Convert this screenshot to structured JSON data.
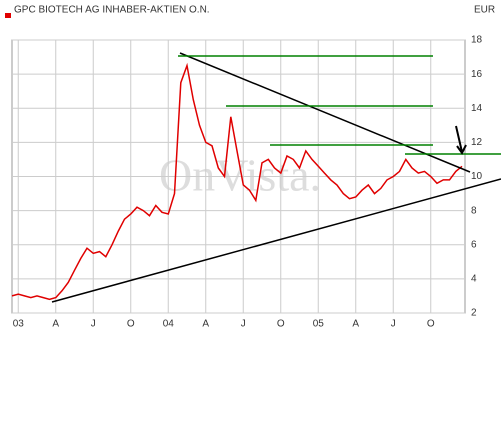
{
  "chart_data": {
    "type": "line",
    "title": "GPC BIOTECH AG INHABER-AKTIEN O.N.",
    "currency": "EUR",
    "watermark": "OnVista.",
    "categories": [
      null,
      "03",
      null,
      null,
      null,
      null,
      null,
      "A",
      null,
      null,
      null,
      null,
      null,
      "J",
      null,
      null,
      null,
      null,
      null,
      "O",
      null,
      null,
      null,
      null,
      null,
      "04",
      null,
      null,
      null,
      null,
      null,
      "A",
      null,
      null,
      null,
      null,
      null,
      "J",
      null,
      null,
      null,
      null,
      null,
      "O",
      null,
      null,
      null,
      null,
      null,
      "05",
      null,
      null,
      null,
      null,
      null,
      "A",
      null,
      null,
      null,
      null,
      null,
      "J",
      null,
      null,
      null,
      null,
      null,
      "O",
      null,
      null,
      null,
      null,
      null
    ],
    "series": [
      {
        "color": "#e00000",
        "values": [
          3.0,
          3.1,
          3.0,
          2.9,
          3.0,
          2.9,
          2.8,
          2.9,
          3.3,
          3.8,
          4.5,
          5.2,
          5.8,
          5.5,
          5.6,
          5.3,
          6.0,
          6.8,
          7.5,
          7.8,
          8.2,
          8.0,
          7.7,
          8.3,
          7.9,
          7.8,
          9.0,
          15.5,
          16.5,
          14.5,
          13.0,
          12.0,
          11.8,
          10.5,
          10.0,
          13.5,
          11.5,
          9.5,
          9.2,
          8.6,
          10.8,
          11.0,
          10.5,
          10.2,
          11.2,
          11.0,
          10.5,
          11.5,
          11.0,
          10.6,
          10.2,
          9.8,
          9.5,
          9.0,
          8.7,
          8.8,
          9.2,
          9.5,
          9.0,
          9.3,
          9.8,
          10.0,
          10.3,
          11.0,
          10.5,
          10.2,
          10.3,
          10.0,
          9.6,
          9.8,
          9.8,
          10.3,
          10.6
        ]
      }
    ],
    "ylim": [
      2,
      18
    ],
    "yticks": [
      2,
      4,
      6,
      8,
      10,
      12,
      14,
      16,
      18
    ],
    "grid": true
  }
}
